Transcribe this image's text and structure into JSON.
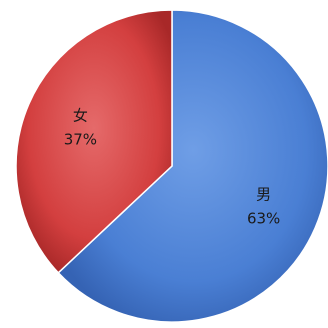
{
  "chart_data": {
    "type": "pie",
    "categories": [
      "男",
      "女"
    ],
    "values": [
      63,
      37
    ],
    "labels": [
      "63%",
      "37%"
    ],
    "colors": [
      "#4a7fd4",
      "#d33f3f"
    ],
    "start_angle_deg": 0,
    "direction": "clockwise",
    "legend": "none"
  }
}
